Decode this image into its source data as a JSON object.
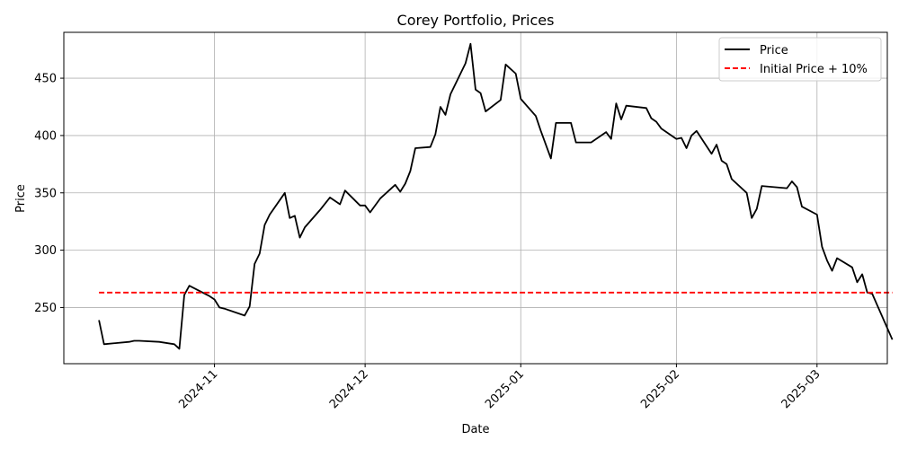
{
  "chart_data": {
    "type": "line",
    "title": "Corey Portfolio, Prices",
    "xlabel": "Date",
    "ylabel": "Price",
    "x_ticks": [
      "2024-11",
      "2024-12",
      "2025-01",
      "2025-02",
      "2025-03"
    ],
    "y_ticks": [
      250,
      300,
      350,
      400,
      450
    ],
    "xlim": [
      "2024-10-02",
      "2025-03-15"
    ],
    "ylim": [
      201,
      490
    ],
    "grid": true,
    "legend_position": "top-right",
    "series": [
      {
        "name": "Price",
        "color": "#000000",
        "style": "solid",
        "points": [
          [
            "2024-10-09",
            239
          ],
          [
            "2024-10-10",
            218
          ],
          [
            "2024-10-15",
            220
          ],
          [
            "2024-10-16",
            221
          ],
          [
            "2024-10-17",
            221
          ],
          [
            "2024-10-21",
            220
          ],
          [
            "2024-10-24",
            218
          ],
          [
            "2024-10-25",
            214
          ],
          [
            "2024-10-26",
            261
          ],
          [
            "2024-10-27",
            269
          ],
          [
            "2024-10-31",
            260
          ],
          [
            "2024-11-01",
            257
          ],
          [
            "2024-11-02",
            250
          ],
          [
            "2024-11-03",
            249
          ],
          [
            "2024-11-07",
            243
          ],
          [
            "2024-11-08",
            251
          ],
          [
            "2024-11-09",
            288
          ],
          [
            "2024-11-10",
            297
          ],
          [
            "2024-11-11",
            322
          ],
          [
            "2024-11-12",
            331
          ],
          [
            "2024-11-15",
            350
          ],
          [
            "2024-11-16",
            328
          ],
          [
            "2024-11-17",
            330
          ],
          [
            "2024-11-18",
            311
          ],
          [
            "2024-11-19",
            320
          ],
          [
            "2024-11-22",
            335
          ],
          [
            "2024-11-24",
            346
          ],
          [
            "2024-11-26",
            340
          ],
          [
            "2024-11-27",
            352
          ],
          [
            "2024-11-30",
            339
          ],
          [
            "2024-12-01",
            339
          ],
          [
            "2024-12-02",
            333
          ],
          [
            "2024-12-04",
            345
          ],
          [
            "2024-12-07",
            357
          ],
          [
            "2024-12-08",
            351
          ],
          [
            "2024-12-09",
            358
          ],
          [
            "2024-12-10",
            369
          ],
          [
            "2024-12-11",
            389
          ],
          [
            "2024-12-14",
            390
          ],
          [
            "2024-12-15",
            401
          ],
          [
            "2024-12-16",
            425
          ],
          [
            "2024-12-17",
            418
          ],
          [
            "2024-12-18",
            436
          ],
          [
            "2024-12-21",
            463
          ],
          [
            "2024-12-22",
            480
          ],
          [
            "2024-12-23",
            440
          ],
          [
            "2024-12-24",
            437
          ],
          [
            "2024-12-25",
            421
          ],
          [
            "2024-12-28",
            431
          ],
          [
            "2024-12-29",
            462
          ],
          [
            "2024-12-31",
            454
          ],
          [
            "2025-01-01",
            432
          ],
          [
            "2025-01-04",
            417
          ],
          [
            "2025-01-05",
            404
          ],
          [
            "2025-01-07",
            380
          ],
          [
            "2025-01-08",
            411
          ],
          [
            "2025-01-11",
            411
          ],
          [
            "2025-01-12",
            394
          ],
          [
            "2025-01-15",
            394
          ],
          [
            "2025-01-18",
            403
          ],
          [
            "2025-01-19",
            397
          ],
          [
            "2025-01-20",
            428
          ],
          [
            "2025-01-21",
            414
          ],
          [
            "2025-01-22",
            426
          ],
          [
            "2025-01-26",
            424
          ],
          [
            "2025-01-27",
            415
          ],
          [
            "2025-01-28",
            412
          ],
          [
            "2025-01-29",
            406
          ],
          [
            "2025-02-01",
            397
          ],
          [
            "2025-02-02",
            398
          ],
          [
            "2025-02-03",
            389
          ],
          [
            "2025-02-04",
            400
          ],
          [
            "2025-02-05",
            404
          ],
          [
            "2025-02-08",
            384
          ],
          [
            "2025-02-09",
            392
          ],
          [
            "2025-02-10",
            378
          ],
          [
            "2025-02-11",
            375
          ],
          [
            "2025-02-12",
            362
          ],
          [
            "2025-02-15",
            350
          ],
          [
            "2025-02-16",
            328
          ],
          [
            "2025-02-17",
            336
          ],
          [
            "2025-02-18",
            356
          ],
          [
            "2025-02-23",
            354
          ],
          [
            "2025-02-24",
            360
          ],
          [
            "2025-02-25",
            355
          ],
          [
            "2025-02-26",
            338
          ],
          [
            "2025-03-01",
            331
          ],
          [
            "2025-03-02",
            303
          ],
          [
            "2025-03-03",
            291
          ],
          [
            "2025-03-04",
            282
          ],
          [
            "2025-03-05",
            293
          ],
          [
            "2025-03-08",
            285
          ],
          [
            "2025-03-09",
            272
          ],
          [
            "2025-03-10",
            279
          ],
          [
            "2025-03-11",
            263
          ],
          [
            "2025-03-12",
            262
          ],
          [
            "2025-03-16",
            222
          ]
        ]
      },
      {
        "name": "Initial Price + 10%",
        "color": "#ff0000",
        "style": "dashed",
        "points": [
          [
            "2024-10-09",
            263
          ],
          [
            "2025-03-16",
            263
          ]
        ]
      }
    ]
  }
}
